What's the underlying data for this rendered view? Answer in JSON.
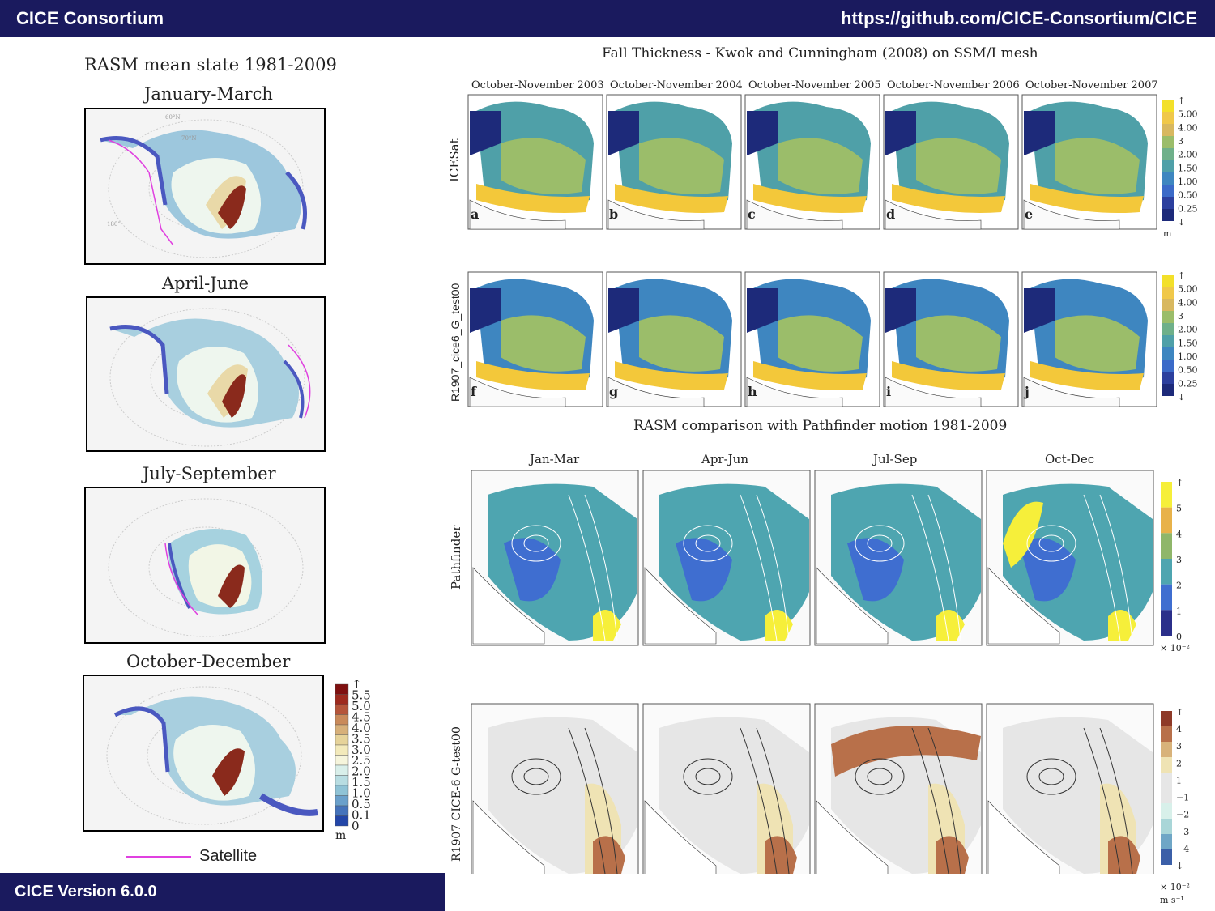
{
  "banner": {
    "left": "CICE Consortium",
    "right": "https://github.com/CICE-Consortium/CICE",
    "bottom": "CICE Version 6.0.0"
  },
  "rasm": {
    "title": "RASM mean state 1981-2009",
    "seasons": [
      "January-March",
      "April-June",
      "July-September",
      "October-December"
    ],
    "lat_labels": [
      "60°N",
      "70°N",
      "180°"
    ],
    "colorbar": {
      "ticks": [
        "↑",
        "5.5",
        "5.0",
        "4.5",
        "4.0",
        "3.5",
        "3.0",
        "2.5",
        "2.0",
        "1.5",
        "1.0",
        "0.5",
        "0.1",
        "0"
      ],
      "unit": "m",
      "colors": [
        "#7f1010",
        "#9e2a1e",
        "#b5553a",
        "#c98a5a",
        "#d7b07a",
        "#e6d39a",
        "#f3eabb",
        "#f6f5dc",
        "#d9efea",
        "#b8dde2",
        "#8fc3d6",
        "#6aa0cb",
        "#4573bb",
        "#2346a8"
      ]
    },
    "legend_label": "Satellite",
    "legend_color": "#e040e0"
  },
  "fall": {
    "title": "Fall Thickness - Kwok and Cunningham (2008) on SSM/I mesh",
    "columns": [
      "October-November 2003",
      "October-November 2004",
      "October-November 2005",
      "October-November 2006",
      "October-November 2007"
    ],
    "row_labels": [
      "ICESat",
      "R1907_cice6_G_test00"
    ],
    "panel_letters": [
      [
        "a",
        "b",
        "c",
        "d",
        "e"
      ],
      [
        "f",
        "g",
        "h",
        "i",
        "j"
      ]
    ],
    "colorbar": {
      "ticks": [
        "↑",
        "5.00",
        "4.00",
        "3",
        "2.00",
        "1.50",
        "1.00",
        "0.50",
        "0.25",
        "↓"
      ],
      "unit": "m",
      "colors": [
        "#f3e02a",
        "#f0c84a",
        "#d8b860",
        "#9bbd6a",
        "#6fb08a",
        "#4fa0a8",
        "#3e86c0",
        "#3b6ac8",
        "#2c3f9e",
        "#1d2a7a"
      ]
    }
  },
  "motion": {
    "title": "RASM comparison with Pathfinder motion 1981-2009",
    "columns": [
      "Jan-Mar",
      "Apr-Jun",
      "Jul-Sep",
      "Oct-Dec"
    ],
    "row_labels": [
      "Pathfinder",
      "R1907 CICE-6 G-test00"
    ],
    "colorbar1": {
      "ticks": [
        "↑",
        "5",
        "4",
        "3",
        "2",
        "1",
        "0"
      ],
      "unit": "× 10⁻²",
      "colors": [
        "#f6ef3a",
        "#e8b24a",
        "#8fb66a",
        "#4ea5b0",
        "#3f6ed0",
        "#2b2f8a"
      ]
    },
    "colorbar2": {
      "ticks": [
        "↑",
        "4",
        "3",
        "2",
        "1",
        "−1",
        "−2",
        "−3",
        "−4",
        "↓"
      ],
      "unit_line1": "× 10⁻²",
      "unit_line2": "m s⁻¹",
      "colors": [
        "#8e3a28",
        "#b8704a",
        "#d8b27a",
        "#efe3b4",
        "#e6e6e6",
        "#e6e6e6",
        "#d8f0ea",
        "#a9d6d8",
        "#6fa6c6",
        "#3b5fa8"
      ]
    }
  }
}
